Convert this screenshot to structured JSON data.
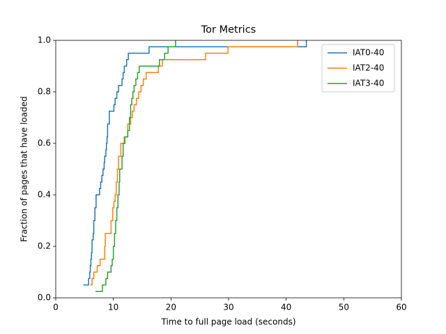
{
  "chart_data": {
    "type": "line",
    "step": "post",
    "title": "Tor Metrics",
    "xlabel": "Time to full page load (seconds)",
    "ylabel": "Fraction of pages that have loaded",
    "xlim": [
      0,
      60
    ],
    "xticks": [
      0,
      10,
      20,
      30,
      40,
      50,
      60
    ],
    "ylim": [
      0,
      1
    ],
    "yticks": [
      {
        "value": 0,
        "label": "0.0"
      },
      {
        "value": 0.2,
        "label": "0.2"
      },
      {
        "value": 0.4,
        "label": "0.4"
      },
      {
        "value": 0.6,
        "label": "0.6"
      },
      {
        "value": 0.8,
        "label": "0.8"
      },
      {
        "value": 1,
        "label": "1.0"
      }
    ],
    "legend": "upper right",
    "series": [
      {
        "name": "IAT0-40",
        "color": "#1f77b4",
        "x": [
          4.8,
          5.7,
          5.9,
          6.0,
          6.1,
          6.2,
          6.3,
          6.5,
          6.6,
          6.8,
          7.0,
          7.6,
          7.8,
          8.0,
          8.2,
          8.4,
          8.5,
          8.7,
          8.8,
          8.9,
          9.0,
          9.3,
          10.1,
          10.3,
          10.6,
          10.9,
          11.5,
          11.7,
          11.9,
          12.3,
          12.6,
          16.2,
          43.5
        ],
        "values": [
          0.05,
          0.075,
          0.1,
          0.125,
          0.15,
          0.175,
          0.225,
          0.25,
          0.3,
          0.35,
          0.4,
          0.425,
          0.45,
          0.475,
          0.5,
          0.525,
          0.55,
          0.575,
          0.6,
          0.625,
          0.675,
          0.725,
          0.75,
          0.775,
          0.8,
          0.825,
          0.85,
          0.875,
          0.9,
          0.925,
          0.95,
          0.975,
          1.0
        ]
      },
      {
        "name": "IAT2-40",
        "color": "#ff7f0e",
        "x": [
          6.0,
          6.3,
          6.6,
          7.2,
          7.7,
          8.5,
          8.6,
          9.6,
          9.9,
          10.1,
          10.3,
          10.5,
          10.7,
          10.9,
          11.3,
          11.9,
          12.5,
          13.0,
          13.3,
          13.6,
          14.0,
          14.4,
          14.8,
          15.2,
          15.7,
          17.8,
          18.5,
          26.0,
          29.9,
          42.0
        ],
        "values": [
          0.05,
          0.075,
          0.1,
          0.125,
          0.15,
          0.2,
          0.25,
          0.3,
          0.35,
          0.375,
          0.4,
          0.45,
          0.5,
          0.55,
          0.6,
          0.625,
          0.675,
          0.7,
          0.725,
          0.75,
          0.775,
          0.8,
          0.825,
          0.85,
          0.875,
          0.9,
          0.925,
          0.95,
          0.975,
          1.0
        ]
      },
      {
        "name": "IAT3-40",
        "color": "#2ca02c",
        "x": [
          6.9,
          8.1,
          8.7,
          9.0,
          9.6,
          9.8,
          10.0,
          10.2,
          10.4,
          10.6,
          10.8,
          11.0,
          11.1,
          11.5,
          11.7,
          12.0,
          12.5,
          12.8,
          13.0,
          13.2,
          13.4,
          13.6,
          13.9,
          14.2,
          14.5,
          18.0,
          18.9,
          19.5,
          20.8
        ],
        "values": [
          0.025,
          0.05,
          0.075,
          0.1,
          0.125,
          0.15,
          0.2,
          0.25,
          0.3,
          0.35,
          0.4,
          0.45,
          0.5,
          0.55,
          0.6,
          0.625,
          0.65,
          0.7,
          0.75,
          0.775,
          0.8,
          0.825,
          0.85,
          0.875,
          0.9,
          0.925,
          0.95,
          0.975,
          1.0
        ]
      }
    ]
  }
}
